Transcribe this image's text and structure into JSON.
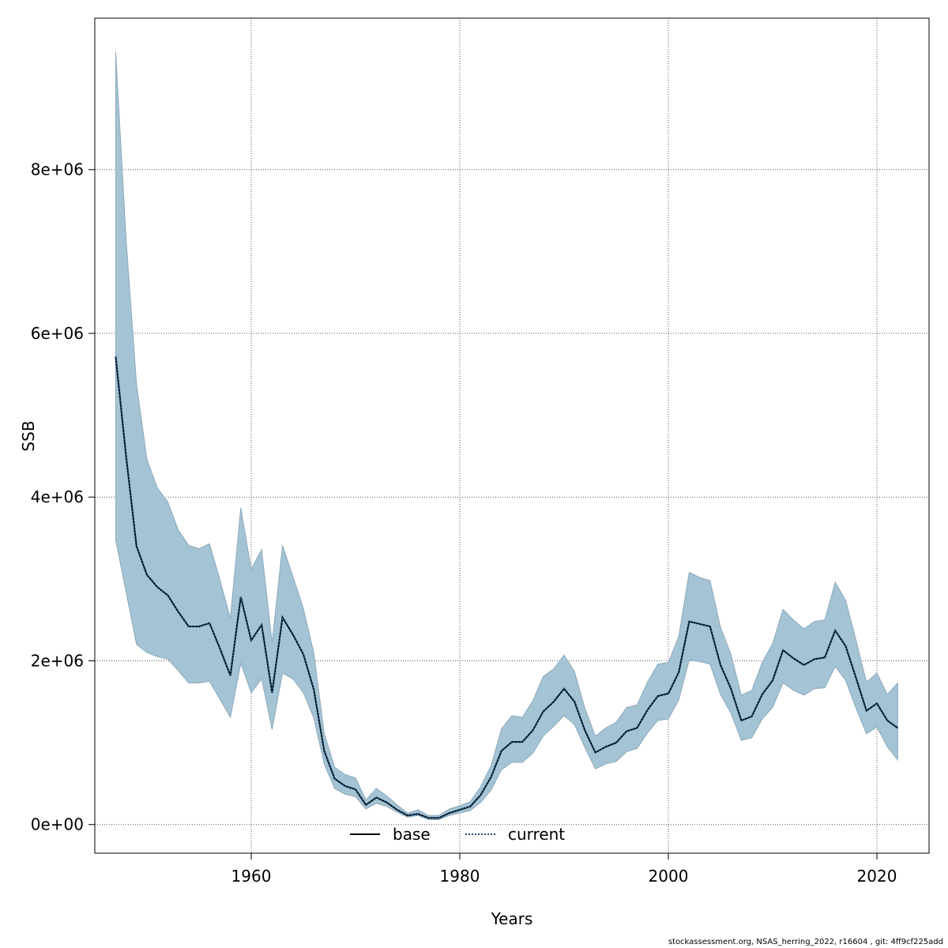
{
  "footer": "stockassessment.org, NSAS_herring_2022, r16604 , git: 4ff9cf225add",
  "colors": {
    "band_fill": "#a4c3d4",
    "band_stroke": "#8eaabb",
    "base_line": "#000000",
    "current_line": "#1a4f7a",
    "grid": "#555555"
  },
  "chart_data": {
    "type": "area",
    "title": "",
    "xlabel": "Years",
    "ylabel": "SSB",
    "xlim": [
      1945,
      2025
    ],
    "ylim": [
      -350000,
      9850000
    ],
    "x_ticks": [
      1960,
      1980,
      2000,
      2020
    ],
    "x_tick_labels": [
      "1960",
      "1980",
      "2000",
      "2020"
    ],
    "y_ticks": [
      0,
      2000000,
      4000000,
      6000000,
      8000000
    ],
    "y_tick_labels": [
      "0e+00",
      "2e+06",
      "4e+06",
      "6e+06",
      "8e+06"
    ],
    "grid": true,
    "legend": {
      "position": "bottom-center",
      "entries": [
        "base",
        "current"
      ]
    },
    "x": [
      1947,
      1948,
      1949,
      1950,
      1951,
      1952,
      1953,
      1954,
      1955,
      1956,
      1957,
      1958,
      1959,
      1960,
      1961,
      1962,
      1963,
      1964,
      1965,
      1966,
      1967,
      1968,
      1969,
      1970,
      1971,
      1972,
      1973,
      1974,
      1975,
      1976,
      1977,
      1978,
      1979,
      1980,
      1981,
      1982,
      1983,
      1984,
      1985,
      1986,
      1987,
      1988,
      1989,
      1990,
      1991,
      1992,
      1993,
      1994,
      1995,
      1996,
      1997,
      1998,
      1999,
      2000,
      2001,
      2002,
      2003,
      2004,
      2005,
      2006,
      2007,
      2008,
      2009,
      2010,
      2011,
      2012,
      2013,
      2014,
      2015,
      2016,
      2017,
      2018,
      2019,
      2020,
      2021,
      2022
    ],
    "series": [
      {
        "name": "base",
        "values": [
          5720000,
          4500000,
          3400000,
          3050000,
          2900000,
          2800000,
          2600000,
          2420000,
          2420000,
          2460000,
          2150000,
          1820000,
          2780000,
          2250000,
          2440000,
          1610000,
          2530000,
          2320000,
          2080000,
          1650000,
          900000,
          560000,
          470000,
          430000,
          240000,
          330000,
          270000,
          180000,
          110000,
          130000,
          80000,
          80000,
          140000,
          180000,
          220000,
          360000,
          580000,
          900000,
          1010000,
          1010000,
          1150000,
          1380000,
          1500000,
          1660000,
          1500000,
          1150000,
          880000,
          950000,
          1000000,
          1140000,
          1180000,
          1400000,
          1570000,
          1600000,
          1860000,
          2480000,
          2450000,
          2420000,
          1950000,
          1660000,
          1270000,
          1320000,
          1590000,
          1760000,
          2130000,
          2030000,
          1950000,
          2020000,
          2040000,
          2370000,
          2180000,
          1790000,
          1390000,
          1480000,
          1270000,
          1180000
        ]
      },
      {
        "name": "current",
        "values": [
          5720000,
          4500000,
          3400000,
          3050000,
          2900000,
          2800000,
          2600000,
          2420000,
          2420000,
          2460000,
          2150000,
          1820000,
          2780000,
          2250000,
          2440000,
          1610000,
          2530000,
          2320000,
          2080000,
          1650000,
          900000,
          560000,
          470000,
          430000,
          240000,
          330000,
          270000,
          180000,
          110000,
          130000,
          80000,
          80000,
          140000,
          180000,
          220000,
          360000,
          580000,
          900000,
          1010000,
          1010000,
          1150000,
          1380000,
          1500000,
          1660000,
          1500000,
          1150000,
          880000,
          950000,
          1000000,
          1140000,
          1180000,
          1400000,
          1570000,
          1600000,
          1860000,
          2480000,
          2450000,
          2420000,
          1950000,
          1660000,
          1270000,
          1320000,
          1590000,
          1760000,
          2130000,
          2030000,
          1950000,
          2020000,
          2040000,
          2370000,
          2180000,
          1790000,
          1390000,
          1480000,
          1270000,
          1180000
        ]
      }
    ],
    "band_lower": [
      3480000,
      2840000,
      2200000,
      2100000,
      2050000,
      2020000,
      1880000,
      1730000,
      1730000,
      1750000,
      1530000,
      1310000,
      1970000,
      1610000,
      1780000,
      1160000,
      1850000,
      1780000,
      1610000,
      1300000,
      740000,
      440000,
      370000,
      340000,
      190000,
      260000,
      220000,
      150000,
      90000,
      110000,
      60000,
      60000,
      110000,
      140000,
      170000,
      270000,
      420000,
      670000,
      760000,
      760000,
      870000,
      1080000,
      1200000,
      1330000,
      1220000,
      940000,
      680000,
      740000,
      770000,
      890000,
      930000,
      1120000,
      1270000,
      1290000,
      1520000,
      2010000,
      1990000,
      1960000,
      1590000,
      1360000,
      1030000,
      1060000,
      1290000,
      1430000,
      1730000,
      1640000,
      1580000,
      1660000,
      1670000,
      1930000,
      1760000,
      1420000,
      1110000,
      1190000,
      950000,
      790000
    ],
    "band_upper": [
      9440000,
      7150000,
      5380000,
      4460000,
      4110000,
      3940000,
      3600000,
      3410000,
      3370000,
      3430000,
      2990000,
      2520000,
      3870000,
      3120000,
      3360000,
      2220000,
      3410000,
      3030000,
      2640000,
      2100000,
      1110000,
      700000,
      610000,
      570000,
      300000,
      440000,
      350000,
      240000,
      140000,
      180000,
      110000,
      110000,
      190000,
      230000,
      280000,
      460000,
      720000,
      1170000,
      1330000,
      1310000,
      1510000,
      1810000,
      1900000,
      2070000,
      1870000,
      1420000,
      1080000,
      1180000,
      1250000,
      1430000,
      1460000,
      1740000,
      1960000,
      1980000,
      2300000,
      3080000,
      3020000,
      2980000,
      2410000,
      2080000,
      1580000,
      1640000,
      1980000,
      2210000,
      2630000,
      2500000,
      2390000,
      2480000,
      2500000,
      2960000,
      2740000,
      2250000,
      1740000,
      1850000,
      1590000,
      1730000
    ]
  }
}
